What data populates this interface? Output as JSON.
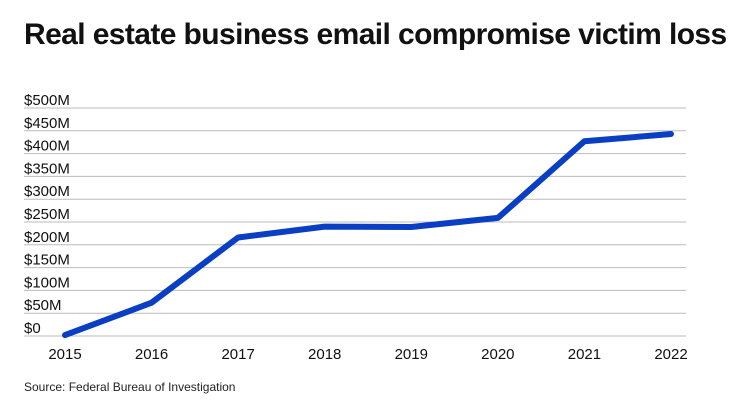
{
  "title": "Real estate business email compromise victim loss",
  "source": "Source: Federal Bureau of Investigation",
  "colors": {
    "line": "#0a3fc4",
    "grid": "#bbbbbb",
    "text": "#111111"
  },
  "chart_data": {
    "type": "line",
    "title": "Real estate business email compromise victim loss",
    "xlabel": "",
    "ylabel": "",
    "categories": [
      "2015",
      "2016",
      "2017",
      "2018",
      "2019",
      "2020",
      "2021",
      "2022"
    ],
    "series": [
      {
        "values": [
          2,
          73,
          216,
          240,
          239,
          259,
          427,
          443
        ]
      }
    ],
    "ylim": [
      0,
      500
    ],
    "y_ticks": [
      0,
      50,
      100,
      150,
      200,
      250,
      300,
      350,
      400,
      450,
      500
    ],
    "y_tick_labels": [
      "$0",
      "$50M",
      "$100M",
      "$150M",
      "$200M",
      "$250M",
      "$300M",
      "$350M",
      "$400M",
      "$450M",
      "$500M"
    ],
    "units": "millions USD",
    "grid": true,
    "legend": "none"
  }
}
